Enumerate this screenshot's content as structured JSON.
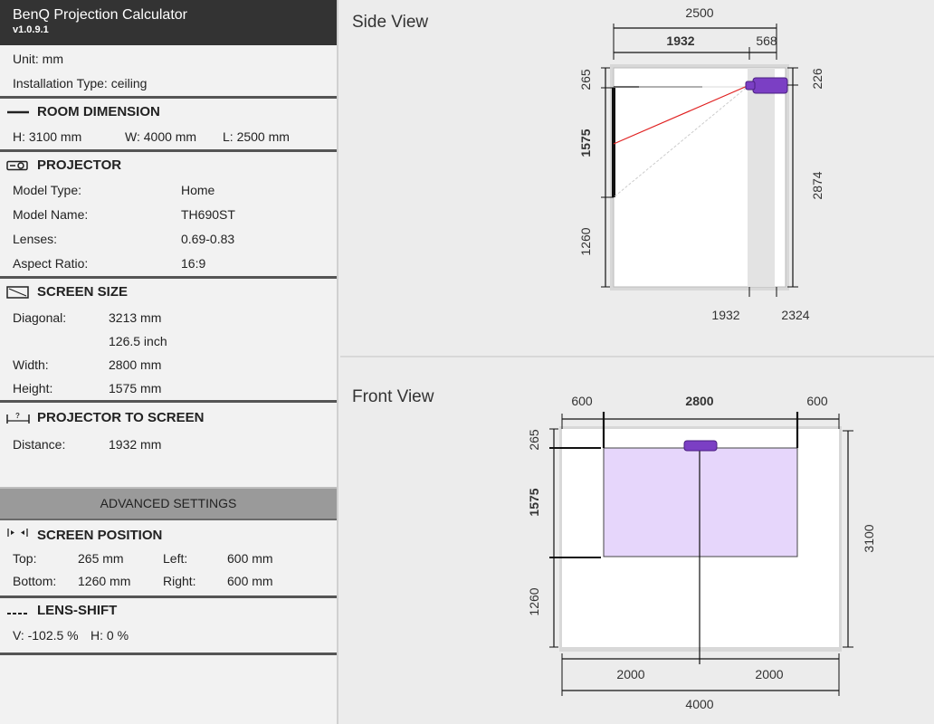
{
  "app": {
    "title": "BenQ Projection Calculator",
    "version": "v1.0.9.1"
  },
  "settings": {
    "unit": "Unit: mm",
    "installation": "Installation Type: ceiling"
  },
  "room": {
    "heading": "ROOM DIMENSION",
    "h": "H: 3100 mm",
    "w": "W: 4000 mm",
    "l": "L: 2500 mm"
  },
  "projector": {
    "heading": "PROJECTOR",
    "model_type_label": "Model Type:",
    "model_type": "Home",
    "model_name_label": "Model Name:",
    "model_name": "TH690ST",
    "lenses_label": "Lenses:",
    "lenses": "0.69-0.83",
    "aspect_label": "Aspect Ratio:",
    "aspect": "16:9"
  },
  "screen_size": {
    "heading": "SCREEN SIZE",
    "diag_label": "Diagonal:",
    "diag_mm": "3213 mm",
    "diag_inch": "126.5 inch",
    "width_label": "Width:",
    "width": "2800 mm",
    "height_label": "Height:",
    "height": "1575 mm"
  },
  "proj_to_screen": {
    "heading": "PROJECTOR TO SCREEN",
    "distance_label": "Distance:",
    "distance": "1932 mm"
  },
  "advanced": {
    "label": "ADVANCED SETTINGS"
  },
  "screen_position": {
    "heading": "SCREEN POSITION",
    "top_label": "Top:",
    "top": "265 mm",
    "left_label": "Left:",
    "left": "600 mm",
    "bottom_label": "Bottom:",
    "bottom": "1260 mm",
    "right_label": "Right:",
    "right": "600 mm"
  },
  "lens_shift": {
    "heading": "LENS-SHIFT",
    "v": "V:  -102.5 %",
    "h": "H:  0 %"
  },
  "side_view": {
    "title": "Side View",
    "dim_total_len": "2500",
    "dim_throw": "1932",
    "dim_rear": "568",
    "dim_top": "265",
    "dim_screen_h": "1575",
    "dim_bottom": "1260",
    "dim_ceiling": "226",
    "dim_floor_to_proj": "2874",
    "dim_floor_throw": "1932",
    "dim_floor_rear": "2324"
  },
  "front_view": {
    "title": "Front View",
    "dim_left": "600",
    "dim_screen_w": "2800",
    "dim_right": "600",
    "dim_top": "265",
    "dim_screen_h": "1575",
    "dim_bottom": "1260",
    "dim_room_h": "3100",
    "dim_half_left": "2000",
    "dim_half_right": "2000",
    "dim_room_w": "4000"
  },
  "colors": {
    "projector": "#7b3fc4",
    "screen_fill": "#e6d6fb",
    "beam": "#e02020",
    "title_bar": "#333333"
  }
}
